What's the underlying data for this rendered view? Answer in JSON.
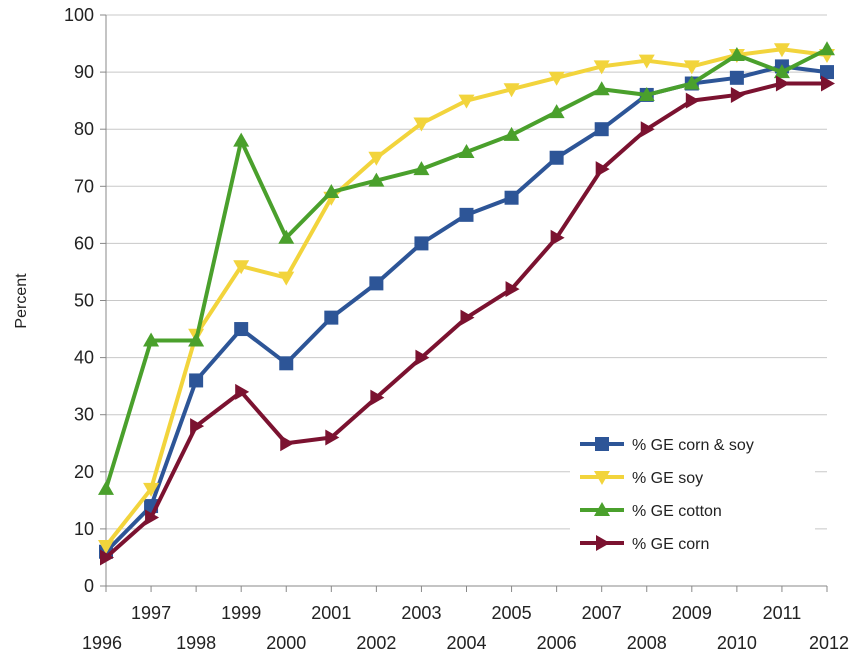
{
  "chart_data": {
    "type": "line",
    "title": "",
    "xlabel": "",
    "ylabel": "Percent",
    "ylim": [
      0,
      100
    ],
    "yticks": [
      0,
      10,
      20,
      30,
      40,
      50,
      60,
      70,
      80,
      90,
      100
    ],
    "x": [
      1996,
      1997,
      1998,
      1999,
      2000,
      2001,
      2002,
      2003,
      2004,
      2005,
      2006,
      2007,
      2008,
      2009,
      2010,
      2011,
      2012
    ],
    "xtick_labels": [
      "1996",
      "1997",
      "1998",
      "1999",
      "2000",
      "2001",
      "2002",
      "2003",
      "2004",
      "2005",
      "2006",
      "2007",
      "2008",
      "2009",
      "2010",
      "2011",
      "2012"
    ],
    "grid": "horizontal",
    "legend_position": "bottom-right",
    "series": [
      {
        "name": "% GE corn & soy",
        "color": "#2d5597",
        "marker": "square",
        "values": [
          6,
          14,
          36,
          45,
          39,
          47,
          53,
          60,
          65,
          68,
          75,
          80,
          86,
          88,
          89,
          91,
          90
        ]
      },
      {
        "name": "% GE soy",
        "color": "#f2d43c",
        "marker": "triangle-down",
        "values": [
          7,
          17,
          44,
          56,
          54,
          68,
          75,
          81,
          85,
          87,
          89,
          91,
          92,
          91,
          93,
          94,
          93
        ]
      },
      {
        "name": "% GE cotton",
        "color": "#4aa02c",
        "marker": "triangle-up",
        "values": [
          17,
          43,
          43,
          78,
          61,
          69,
          71,
          73,
          76,
          79,
          83,
          87,
          86,
          88,
          93,
          90,
          94
        ]
      },
      {
        "name": "% GE corn",
        "color": "#7b1230",
        "marker": "triangle-right",
        "values": [
          5,
          12,
          28,
          34,
          25,
          26,
          33,
          40,
          47,
          52,
          61,
          73,
          80,
          85,
          86,
          88,
          88
        ]
      }
    ]
  }
}
